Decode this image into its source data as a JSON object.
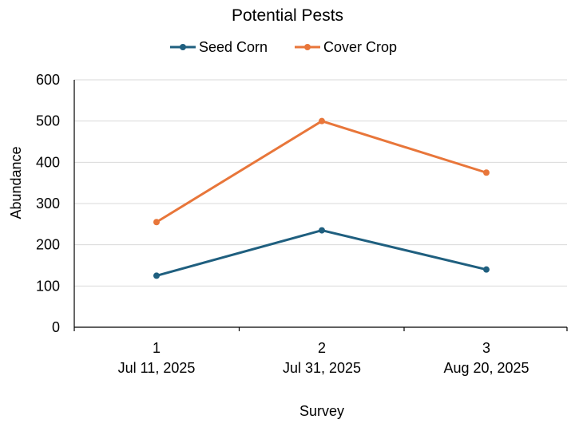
{
  "chart_data": {
    "type": "line",
    "title": "Potential Pests",
    "xlabel": "Survey",
    "ylabel": "Abundance",
    "categories": [
      {
        "survey": "1",
        "date": "Jul 11, 2025"
      },
      {
        "survey": "2",
        "date": "Jul 31, 2025"
      },
      {
        "survey": "3",
        "date": "Aug 20, 2025"
      }
    ],
    "series": [
      {
        "name": "Seed Corn",
        "color": "#1F5F7F",
        "values": [
          125,
          235,
          140
        ]
      },
      {
        "name": "Cover Crop",
        "color": "#E8763A",
        "values": [
          255,
          500,
          375
        ]
      }
    ],
    "ylim": [
      0,
      600
    ],
    "yticks": [
      0,
      100,
      200,
      300,
      400,
      500,
      600
    ],
    "grid": "horizontal",
    "legend_position": "top"
  }
}
